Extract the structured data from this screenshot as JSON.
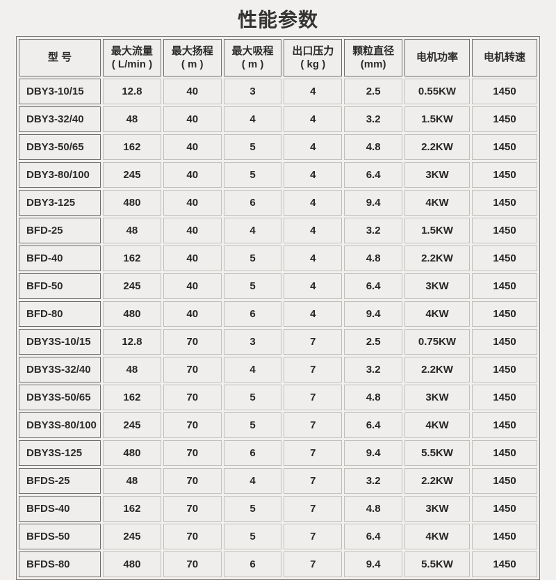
{
  "page": {
    "title": "性能参数"
  },
  "colors": {
    "page_background": "#f1f0ee",
    "cell_background": "#efeeec",
    "border_dark": "#6e6d6b",
    "border_light": "#bfbebb",
    "text": "#2b2b2b"
  },
  "table": {
    "columns": [
      {
        "key": "model",
        "label": "型 号",
        "unit": ""
      },
      {
        "key": "max-flow",
        "label": "最大流量",
        "unit": "( L/min )"
      },
      {
        "key": "max-head",
        "label": "最大扬程",
        "unit": "( m )"
      },
      {
        "key": "max-suction",
        "label": "最大吸程",
        "unit": "( m )"
      },
      {
        "key": "outlet-pressure",
        "label": "出口压力",
        "unit": "( kg )"
      },
      {
        "key": "particle-diameter",
        "label": "颗粒直径",
        "unit": "(mm)"
      },
      {
        "key": "motor-power",
        "label": "电机功率",
        "unit": ""
      },
      {
        "key": "motor-speed",
        "label": "电机转速",
        "unit": ""
      }
    ],
    "rows": [
      {
        "model": "DBY3-10/15",
        "values": [
          "12.8",
          "40",
          "3",
          "4",
          "2.5",
          "0.55KW",
          "1450"
        ]
      },
      {
        "model": "DBY3-32/40",
        "values": [
          "48",
          "40",
          "4",
          "4",
          "3.2",
          "1.5KW",
          "1450"
        ]
      },
      {
        "model": "DBY3-50/65",
        "values": [
          "162",
          "40",
          "5",
          "4",
          "4.8",
          "2.2KW",
          "1450"
        ]
      },
      {
        "model": "DBY3-80/100",
        "values": [
          "245",
          "40",
          "5",
          "4",
          "6.4",
          "3KW",
          "1450"
        ]
      },
      {
        "model": "DBY3-125",
        "values": [
          "480",
          "40",
          "6",
          "4",
          "9.4",
          "4KW",
          "1450"
        ]
      },
      {
        "model": "BFD-25",
        "values": [
          "48",
          "40",
          "4",
          "4",
          "3.2",
          "1.5KW",
          "1450"
        ]
      },
      {
        "model": "BFD-40",
        "values": [
          "162",
          "40",
          "5",
          "4",
          "4.8",
          "2.2KW",
          "1450"
        ]
      },
      {
        "model": "BFD-50",
        "values": [
          "245",
          "40",
          "5",
          "4",
          "6.4",
          "3KW",
          "1450"
        ]
      },
      {
        "model": "BFD-80",
        "values": [
          "480",
          "40",
          "6",
          "4",
          "9.4",
          "4KW",
          "1450"
        ]
      },
      {
        "model": "DBY3S-10/15",
        "values": [
          "12.8",
          "70",
          "3",
          "7",
          "2.5",
          "0.75KW",
          "1450"
        ]
      },
      {
        "model": "DBY3S-32/40",
        "values": [
          "48",
          "70",
          "4",
          "7",
          "3.2",
          "2.2KW",
          "1450"
        ]
      },
      {
        "model": "DBY3S-50/65",
        "values": [
          "162",
          "70",
          "5",
          "7",
          "4.8",
          "3KW",
          "1450"
        ]
      },
      {
        "model": "DBY3S-80/100",
        "values": [
          "245",
          "70",
          "5",
          "7",
          "6.4",
          "4KW",
          "1450"
        ]
      },
      {
        "model": "DBY3S-125",
        "values": [
          "480",
          "70",
          "6",
          "7",
          "9.4",
          "5.5KW",
          "1450"
        ]
      },
      {
        "model": "BFDS-25",
        "values": [
          "48",
          "70",
          "4",
          "7",
          "3.2",
          "2.2KW",
          "1450"
        ]
      },
      {
        "model": "BFDS-40",
        "values": [
          "162",
          "70",
          "5",
          "7",
          "4.8",
          "3KW",
          "1450"
        ]
      },
      {
        "model": "BFDS-50",
        "values": [
          "245",
          "70",
          "5",
          "7",
          "6.4",
          "4KW",
          "1450"
        ]
      },
      {
        "model": "BFDS-80",
        "values": [
          "480",
          "70",
          "6",
          "7",
          "9.4",
          "5.5KW",
          "1450"
        ]
      }
    ]
  }
}
